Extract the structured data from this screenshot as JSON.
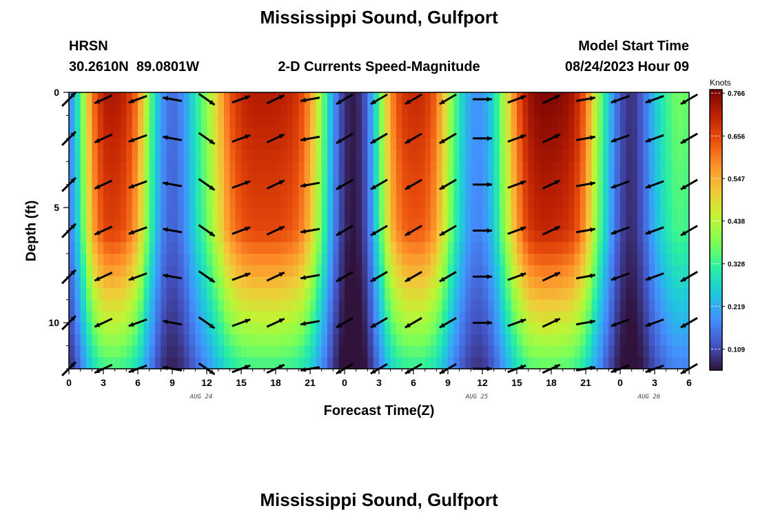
{
  "page": {
    "title": "Mississippi Sound, Gulfport",
    "station_code": "HRSN",
    "station_coords": "30.2610N  89.0801W",
    "model_start_label": "Model Start Time",
    "model_start_value": "08/24/2023 Hour 09",
    "bottom_title": "Mississippi Sound, Gulfport"
  },
  "chart_data": {
    "type": "heatmap",
    "title": "2-D Currents Speed-Magnitude",
    "xlabel": "Forecast Time(Z)",
    "ylabel": "Depth (ft)",
    "x_tick_labels": [
      "0",
      "3",
      "6",
      "9",
      "12",
      "15",
      "18",
      "21",
      "0",
      "3",
      "6",
      "9",
      "12",
      "15",
      "18",
      "21",
      "0",
      "3",
      "6"
    ],
    "x_range_hours": [
      0,
      54
    ],
    "date_labels": [
      {
        "text": "AUG 24",
        "hour": 12
      },
      {
        "text": "AUG 25",
        "hour": 36
      },
      {
        "text": "AUG 26",
        "hour": 51
      }
    ],
    "y_tick_labels": [
      "0",
      "5",
      "10"
    ],
    "y_range_ft": [
      0,
      12
    ],
    "colorbar": {
      "unit": "Knots",
      "range": [
        0.055,
        0.775
      ],
      "tick_values": [
        "0.766",
        "0.656",
        "0.547",
        "0.438",
        "0.328",
        "0.219",
        "0.109"
      ],
      "colors": [
        "#30123b",
        "#4454c4",
        "#4490fe",
        "#1fc8de",
        "#29efa2",
        "#7dff56",
        "#c1f334",
        "#f1ca3a",
        "#fe922a",
        "#ea4f0d",
        "#be2102",
        "#7a0403"
      ]
    },
    "surface_speed_by_hour": [
      0.16,
      0.34,
      0.6,
      0.72,
      0.73,
      0.7,
      0.6,
      0.38,
      0.2,
      0.14,
      0.19,
      0.3,
      0.4,
      0.52,
      0.64,
      0.7,
      0.72,
      0.72,
      0.72,
      0.71,
      0.68,
      0.58,
      0.4,
      0.2,
      0.08,
      0.06,
      0.14,
      0.35,
      0.58,
      0.68,
      0.7,
      0.69,
      0.62,
      0.45,
      0.3,
      0.2,
      0.19,
      0.28,
      0.45,
      0.62,
      0.74,
      0.77,
      0.77,
      0.76,
      0.73,
      0.62,
      0.42,
      0.25,
      0.12,
      0.08,
      0.14,
      0.25,
      0.33,
      0.38,
      0.36
    ],
    "vector_hours": [
      0,
      3,
      6,
      9,
      12,
      15,
      18,
      21,
      24,
      27,
      30,
      33,
      36,
      39,
      42,
      45,
      48,
      51,
      54
    ],
    "vector_depths_ft": [
      0.3,
      2,
      4,
      6,
      8,
      10,
      12
    ],
    "vector_angles_deg": [
      45,
      -155,
      -160,
      170,
      -35,
      20,
      25,
      -170,
      -150,
      -150,
      -150,
      -150,
      0,
      20,
      25,
      10,
      -160,
      -160,
      -150
    ]
  }
}
